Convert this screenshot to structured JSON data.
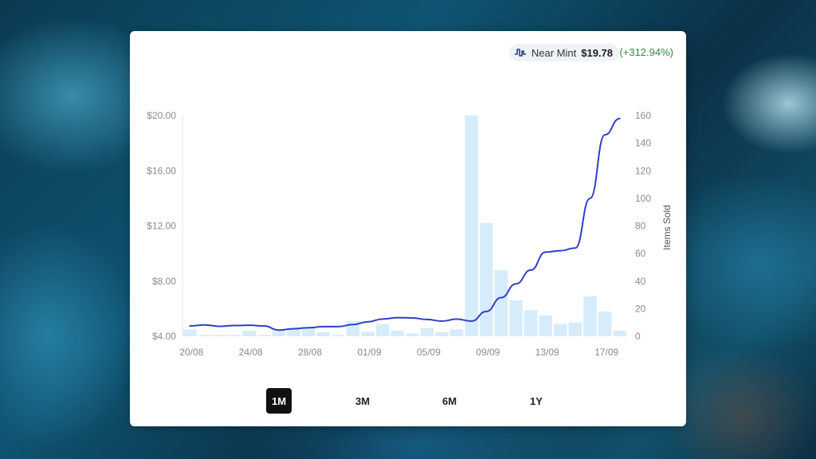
{
  "header": {
    "condition": "Near Mint",
    "price": "$19.78",
    "change": "(+312.94%)",
    "change_color": "#2f8a3a",
    "icon": "price-history-icon"
  },
  "ranges": [
    {
      "label": "1M",
      "active": true
    },
    {
      "label": "3M",
      "active": false
    },
    {
      "label": "6M",
      "active": false
    },
    {
      "label": "1Y",
      "active": false
    }
  ],
  "chart_data": {
    "type": "bar+line",
    "left_axis": {
      "ticks": [
        "$4.00",
        "$8.00",
        "$12.00",
        "$16.00",
        "$20.00"
      ],
      "range": [
        4,
        20
      ],
      "label": ""
    },
    "right_axis": {
      "ticks": [
        "0",
        "20",
        "40",
        "60",
        "80",
        "100",
        "120",
        "140",
        "160"
      ],
      "range": [
        0,
        160
      ],
      "label": "Items Sold"
    },
    "x_ticks": [
      "20/08",
      "24/08",
      "28/08",
      "01/09",
      "05/09",
      "09/09",
      "13/09",
      "17/09"
    ],
    "categories": [
      "20/08",
      "21/08",
      "22/08",
      "23/08",
      "24/08",
      "25/08",
      "26/08",
      "27/08",
      "28/08",
      "29/08",
      "30/08",
      "31/08",
      "01/09",
      "02/09",
      "03/09",
      "04/09",
      "05/09",
      "06/09",
      "07/09",
      "08/09",
      "09/09",
      "10/09",
      "11/09",
      "12/09",
      "13/09",
      "14/09",
      "15/09",
      "16/09",
      "17/09",
      "18/09"
    ],
    "series": [
      {
        "name": "Items Sold",
        "type": "bar",
        "color": "#d6ecfb",
        "values": [
          5,
          1,
          1,
          1,
          4,
          1,
          5,
          5,
          6,
          3,
          1,
          11,
          3,
          9,
          4,
          2,
          6,
          3,
          5,
          160,
          82,
          48,
          26,
          19,
          15,
          9,
          10,
          29,
          18,
          4
        ]
      },
      {
        "name": "Near Mint",
        "type": "line",
        "color": "#2f3fc8",
        "values": [
          4.75,
          4.82,
          4.72,
          4.78,
          4.8,
          4.75,
          4.45,
          4.55,
          4.62,
          4.7,
          4.7,
          4.85,
          5.05,
          5.25,
          5.35,
          5.33,
          5.22,
          5.1,
          5.25,
          5.1,
          5.8,
          6.8,
          7.8,
          8.8,
          10.1,
          10.2,
          10.4,
          14.0,
          18.6,
          19.78
        ]
      }
    ]
  }
}
